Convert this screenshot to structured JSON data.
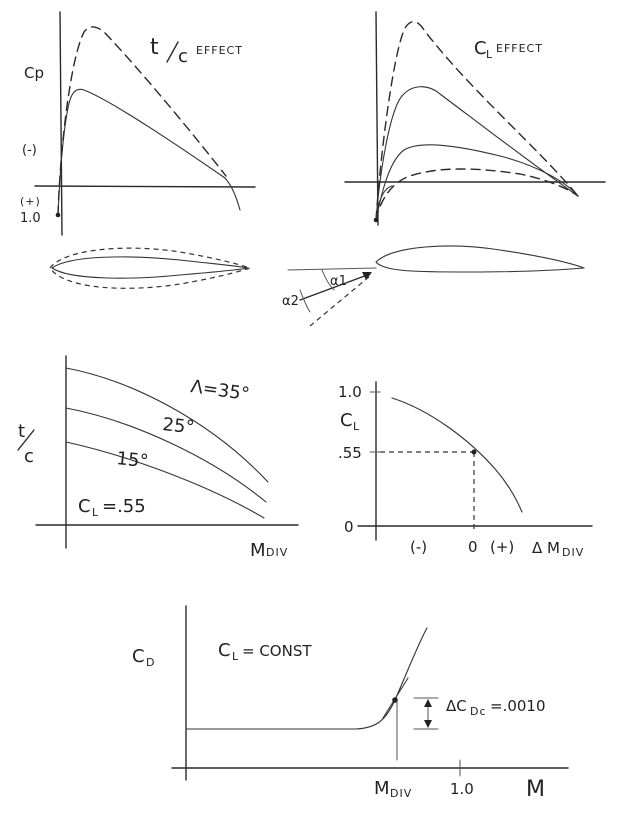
{
  "panel_tc": {
    "title": "t/c EFFECT",
    "title_t": "t",
    "title_c": "c",
    "title_word": "EFFECT",
    "ylabel": "Cp",
    "minus": "(-)",
    "plus": "(+)",
    "one": "1.0"
  },
  "panel_cl": {
    "title": "CL EFFECT",
    "title_c": "C",
    "title_l": "L",
    "title_word": "EFFECT",
    "alpha1": "α1",
    "alpha2": "α2"
  },
  "panel_sweep": {
    "ylabel_t": "t",
    "ylabel_c": "c",
    "xlabel": "MDIV",
    "xlabel_m": "M",
    "xlabel_sub": "DIV",
    "curve1": "Λ=35°",
    "curve2": "25°",
    "curve3": "15°",
    "cl_note": "CL=.55",
    "cl_note_c": "C",
    "cl_note_l": "L",
    "cl_note_val": "=.55"
  },
  "panel_dm": {
    "ylabel": "CL",
    "ylabel_c": "C",
    "ylabel_l": "L",
    "tick_top": "1.0",
    "tick_mid": ".55",
    "tick_zero": "0",
    "x_minus": "(-)",
    "x_zero": "0",
    "x_plus": "(+)",
    "xlabel": "ΔMDIV",
    "xlabel_delta": "Δ",
    "xlabel_m": "M",
    "xlabel_sub": "DIV"
  },
  "panel_cd": {
    "ylabel": "CD",
    "ylabel_c": "C",
    "ylabel_d": "D",
    "note": "CL=CONST",
    "note_c": "C",
    "note_l": "L",
    "note_rest": "= CONST",
    "delta": "ΔCDc=.0010",
    "delta_prefix": "ΔC",
    "delta_sub": "Dc",
    "delta_val": "=.0010",
    "x_mdiv_m": "M",
    "x_mdiv_sub": "DIV",
    "x_one": "1.0",
    "x_m": "M"
  },
  "chart_data": [
    {
      "type": "line",
      "title": "t/c EFFECT",
      "ylabel": "Cp",
      "series": [
        {
          "name": "",
          "style": "solid",
          "values": []
        },
        {
          "name": "",
          "style": "dashed",
          "values": []
        }
      ]
    },
    {
      "type": "line",
      "title": "CL EFFECT",
      "series": [
        {
          "name": "",
          "style": "solid",
          "values": []
        },
        {
          "name": "",
          "style": "dashed",
          "values": []
        }
      ]
    },
    {
      "type": "line",
      "xlabel": "MDIV",
      "ylabel": "t/c",
      "series": [
        {
          "name": "Λ=35°",
          "values": []
        },
        {
          "name": "25°",
          "values": []
        },
        {
          "name": "15°",
          "values": []
        }
      ],
      "annotation": "CL=.55"
    },
    {
      "type": "line",
      "xlabel": "ΔMDIV",
      "ylabel": "CL",
      "y_ticks": [
        "0",
        ".55",
        "1.0"
      ],
      "x_ticks": [
        "(-)",
        "0",
        "(+)"
      ],
      "marked_point": {
        "x": 0,
        "y": 0.55
      }
    },
    {
      "type": "line",
      "xlabel": "M",
      "ylabel": "CD",
      "x_ticks": [
        "MDIV",
        "1.0"
      ],
      "annotation": "CL=CONST",
      "delta_label": "ΔCDc=.0010",
      "delta_cd": 0.001
    }
  ]
}
